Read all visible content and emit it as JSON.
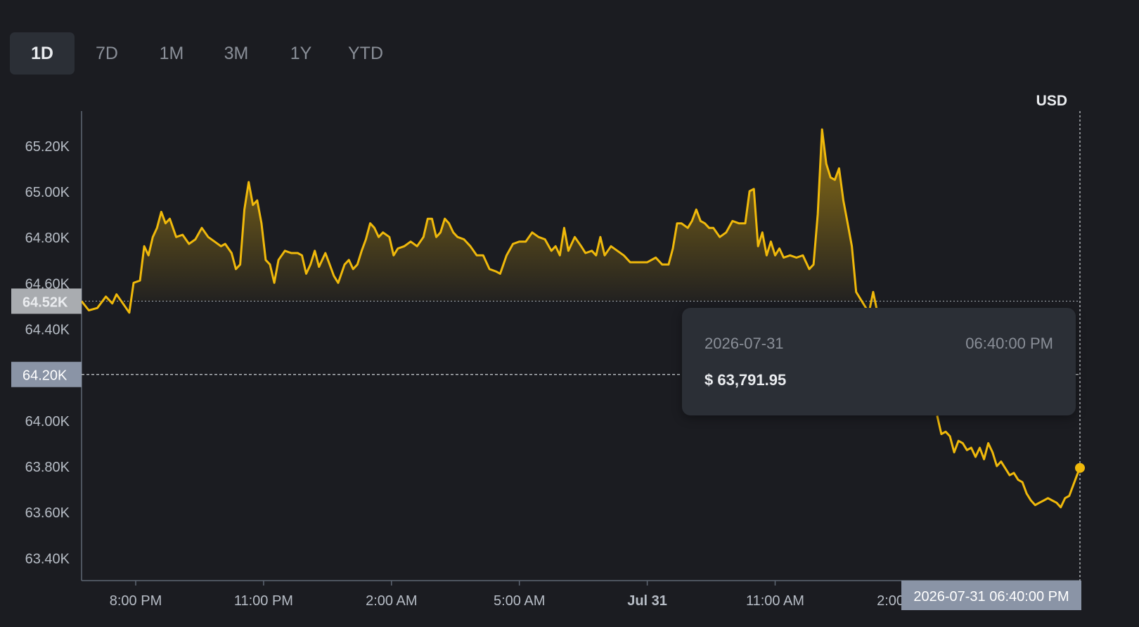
{
  "tabs": [
    {
      "label": "1D",
      "active": true
    },
    {
      "label": "7D",
      "active": false
    },
    {
      "label": "1M",
      "active": false
    },
    {
      "label": "3M",
      "active": false
    },
    {
      "label": "1Y",
      "active": false
    },
    {
      "label": "YTD",
      "active": false
    }
  ],
  "currency_label": "USD",
  "tooltip": {
    "date": "2026-07-31",
    "time": "06:40:00 PM",
    "price": "$ 63,791.95"
  },
  "crosshair": {
    "x_label": "2026-07-31 06:40:00 PM",
    "y_label": "64.20K",
    "y_value": 64200
  },
  "colors": {
    "line": "#f0b90b",
    "background": "#1b1c21",
    "axis_text": "#b7bdc6",
    "tooltip_bg": "#2b2f36"
  },
  "chart_data": {
    "type": "area",
    "title": "",
    "xlabel": "",
    "ylabel": "",
    "ylim": [
      63300,
      65350
    ],
    "baseline": {
      "label": "64.52K",
      "value": 64520
    },
    "y_ticks": [
      {
        "label": "65.20K",
        "value": 65200
      },
      {
        "label": "65.00K",
        "value": 65000
      },
      {
        "label": "64.80K",
        "value": 64800
      },
      {
        "label": "64.60K",
        "value": 64600
      },
      {
        "label": "64.40K",
        "value": 64400
      },
      {
        "label": "64.20K",
        "value": 64200
      },
      {
        "label": "64.00K",
        "value": 64000
      },
      {
        "label": "63.80K",
        "value": 63800
      },
      {
        "label": "63.60K",
        "value": 63600
      },
      {
        "label": "63.40K",
        "value": 63400
      }
    ],
    "x_ticks": [
      {
        "label": "8:00 PM",
        "hour": 20,
        "bold": false
      },
      {
        "label": "11:00 PM",
        "hour": 23,
        "bold": false
      },
      {
        "label": "2:00 AM",
        "hour": 26,
        "bold": false
      },
      {
        "label": "5:00 AM",
        "hour": 29,
        "bold": false
      },
      {
        "label": "Jul 31",
        "hour": 32,
        "bold": true
      },
      {
        "label": "11:00 AM",
        "hour": 35,
        "bold": false
      },
      {
        "label": "2:00 PM",
        "hour": 38,
        "bold": false
      }
    ],
    "grid": false,
    "series": [
      {
        "points": [
          [
            18.73,
            64520
          ],
          [
            18.9,
            64480
          ],
          [
            19.1,
            64490
          ],
          [
            19.3,
            64540
          ],
          [
            19.45,
            64510
          ],
          [
            19.55,
            64550
          ],
          [
            19.7,
            64510
          ],
          [
            19.85,
            64470
          ],
          [
            19.95,
            64600
          ],
          [
            20.1,
            64610
          ],
          [
            20.2,
            64760
          ],
          [
            20.3,
            64720
          ],
          [
            20.4,
            64800
          ],
          [
            20.5,
            64840
          ],
          [
            20.6,
            64910
          ],
          [
            20.7,
            64860
          ],
          [
            20.8,
            64880
          ],
          [
            20.95,
            64800
          ],
          [
            21.1,
            64810
          ],
          [
            21.25,
            64770
          ],
          [
            21.4,
            64790
          ],
          [
            21.55,
            64840
          ],
          [
            21.7,
            64800
          ],
          [
            21.85,
            64780
          ],
          [
            22.0,
            64760
          ],
          [
            22.1,
            64770
          ],
          [
            22.25,
            64730
          ],
          [
            22.35,
            64660
          ],
          [
            22.45,
            64680
          ],
          [
            22.55,
            64920
          ],
          [
            22.65,
            65040
          ],
          [
            22.75,
            64940
          ],
          [
            22.85,
            64960
          ],
          [
            22.95,
            64860
          ],
          [
            23.05,
            64700
          ],
          [
            23.15,
            64680
          ],
          [
            23.25,
            64600
          ],
          [
            23.35,
            64700
          ],
          [
            23.5,
            64740
          ],
          [
            23.65,
            64730
          ],
          [
            23.8,
            64730
          ],
          [
            23.9,
            64720
          ],
          [
            24.0,
            64640
          ],
          [
            24.1,
            64680
          ],
          [
            24.2,
            64740
          ],
          [
            24.3,
            64670
          ],
          [
            24.45,
            64730
          ],
          [
            24.55,
            64680
          ],
          [
            24.65,
            64630
          ],
          [
            24.75,
            64600
          ],
          [
            24.9,
            64680
          ],
          [
            25.0,
            64700
          ],
          [
            25.1,
            64660
          ],
          [
            25.2,
            64680
          ],
          [
            25.3,
            64740
          ],
          [
            25.4,
            64790
          ],
          [
            25.5,
            64860
          ],
          [
            25.6,
            64840
          ],
          [
            25.7,
            64800
          ],
          [
            25.8,
            64820
          ],
          [
            25.95,
            64800
          ],
          [
            26.05,
            64720
          ],
          [
            26.15,
            64750
          ],
          [
            26.3,
            64760
          ],
          [
            26.45,
            64780
          ],
          [
            26.6,
            64760
          ],
          [
            26.75,
            64800
          ],
          [
            26.85,
            64880
          ],
          [
            26.95,
            64880
          ],
          [
            27.05,
            64800
          ],
          [
            27.15,
            64820
          ],
          [
            27.25,
            64880
          ],
          [
            27.35,
            64860
          ],
          [
            27.45,
            64820
          ],
          [
            27.55,
            64800
          ],
          [
            27.7,
            64790
          ],
          [
            27.85,
            64760
          ],
          [
            28.0,
            64720
          ],
          [
            28.15,
            64720
          ],
          [
            28.3,
            64660
          ],
          [
            28.45,
            64650
          ],
          [
            28.55,
            64640
          ],
          [
            28.7,
            64720
          ],
          [
            28.85,
            64770
          ],
          [
            29.0,
            64780
          ],
          [
            29.15,
            64780
          ],
          [
            29.3,
            64820
          ],
          [
            29.45,
            64800
          ],
          [
            29.6,
            64790
          ],
          [
            29.75,
            64740
          ],
          [
            29.85,
            64760
          ],
          [
            29.95,
            64720
          ],
          [
            30.05,
            64840
          ],
          [
            30.15,
            64740
          ],
          [
            30.3,
            64800
          ],
          [
            30.45,
            64760
          ],
          [
            30.55,
            64730
          ],
          [
            30.7,
            64740
          ],
          [
            30.8,
            64720
          ],
          [
            30.9,
            64800
          ],
          [
            31.0,
            64720
          ],
          [
            31.15,
            64760
          ],
          [
            31.3,
            64740
          ],
          [
            31.45,
            64720
          ],
          [
            31.6,
            64690
          ],
          [
            31.8,
            64690
          ],
          [
            32.0,
            64690
          ],
          [
            32.2,
            64710
          ],
          [
            32.35,
            64680
          ],
          [
            32.5,
            64680
          ],
          [
            32.6,
            64750
          ],
          [
            32.7,
            64860
          ],
          [
            32.8,
            64860
          ],
          [
            32.95,
            64840
          ],
          [
            33.05,
            64870
          ],
          [
            33.15,
            64920
          ],
          [
            33.25,
            64870
          ],
          [
            33.35,
            64860
          ],
          [
            33.45,
            64840
          ],
          [
            33.55,
            64840
          ],
          [
            33.7,
            64800
          ],
          [
            33.85,
            64820
          ],
          [
            34.0,
            64870
          ],
          [
            34.15,
            64860
          ],
          [
            34.3,
            64860
          ],
          [
            34.4,
            65000
          ],
          [
            34.5,
            65010
          ],
          [
            34.6,
            64760
          ],
          [
            34.7,
            64820
          ],
          [
            34.8,
            64720
          ],
          [
            34.9,
            64780
          ],
          [
            35.0,
            64720
          ],
          [
            35.1,
            64750
          ],
          [
            35.2,
            64710
          ],
          [
            35.35,
            64720
          ],
          [
            35.5,
            64710
          ],
          [
            35.65,
            64720
          ],
          [
            35.8,
            64660
          ],
          [
            35.9,
            64680
          ],
          [
            36.0,
            64900
          ],
          [
            36.1,
            65270
          ],
          [
            36.2,
            65120
          ],
          [
            36.3,
            65060
          ],
          [
            36.4,
            65050
          ],
          [
            36.5,
            65100
          ],
          [
            36.6,
            64960
          ],
          [
            36.7,
            64860
          ],
          [
            36.8,
            64760
          ],
          [
            36.9,
            64560
          ],
          [
            37.0,
            64530
          ],
          [
            37.1,
            64500
          ],
          [
            37.2,
            64470
          ],
          [
            37.3,
            64560
          ],
          [
            37.4,
            64470
          ]
        ],
        "points_right": [
          [
            38.8,
            64020
          ],
          [
            38.9,
            63940
          ],
          [
            39.0,
            63950
          ],
          [
            39.1,
            63930
          ],
          [
            39.2,
            63860
          ],
          [
            39.3,
            63910
          ],
          [
            39.4,
            63900
          ],
          [
            39.5,
            63870
          ],
          [
            39.6,
            63880
          ],
          [
            39.7,
            63840
          ],
          [
            39.8,
            63880
          ],
          [
            39.9,
            63830
          ],
          [
            40.0,
            63900
          ],
          [
            40.1,
            63860
          ],
          [
            40.2,
            63800
          ],
          [
            40.3,
            63820
          ],
          [
            40.4,
            63790
          ],
          [
            40.5,
            63760
          ],
          [
            40.6,
            63770
          ],
          [
            40.7,
            63740
          ],
          [
            40.8,
            63730
          ],
          [
            40.9,
            63680
          ],
          [
            41.0,
            63650
          ],
          [
            41.1,
            63630
          ],
          [
            41.2,
            63640
          ],
          [
            41.3,
            63650
          ],
          [
            41.4,
            63660
          ],
          [
            41.5,
            63650
          ],
          [
            41.6,
            63640
          ],
          [
            41.7,
            63620
          ],
          [
            41.8,
            63660
          ],
          [
            41.9,
            63670
          ],
          [
            42.0,
            63720
          ],
          [
            42.1,
            63770
          ],
          [
            42.15,
            63791.95
          ]
        ]
      }
    ]
  }
}
